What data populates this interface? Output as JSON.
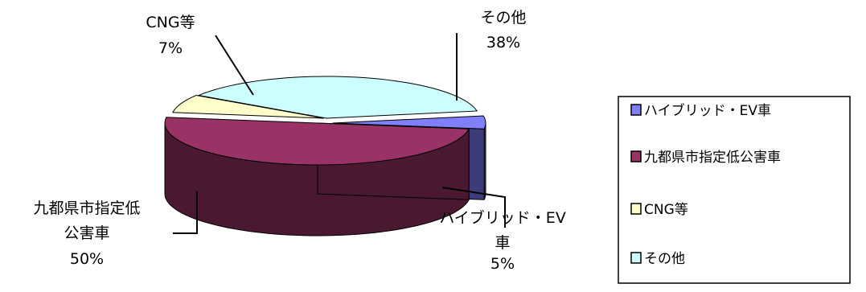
{
  "chart_data": {
    "type": "pie",
    "style": "3d-exploded",
    "legend_position": "right",
    "slices": [
      {
        "name": "ハイブリッド・EV車",
        "value": 5,
        "label_lines": [
          "ハイブリッド・EV",
          "車"
        ],
        "pct_text": "5%",
        "color": "#8080ff",
        "side_color": "#3c3c78"
      },
      {
        "name": "九都県市指定低公害車",
        "value": 50,
        "label_lines": [
          "九都県市指定低",
          "公害車"
        ],
        "pct_text": "50%",
        "color": "#993366",
        "side_color": "#4a1830"
      },
      {
        "name": "CNG等",
        "value": 7,
        "label_lines": [
          "CNG等"
        ],
        "pct_text": "7%",
        "color": "#ffffcc",
        "side_color": "#a6a680"
      },
      {
        "name": "その他",
        "value": 38,
        "label_lines": [
          "その他"
        ],
        "pct_text": "38%",
        "color": "#ccffff",
        "side_color": "#5e8a86"
      }
    ]
  }
}
